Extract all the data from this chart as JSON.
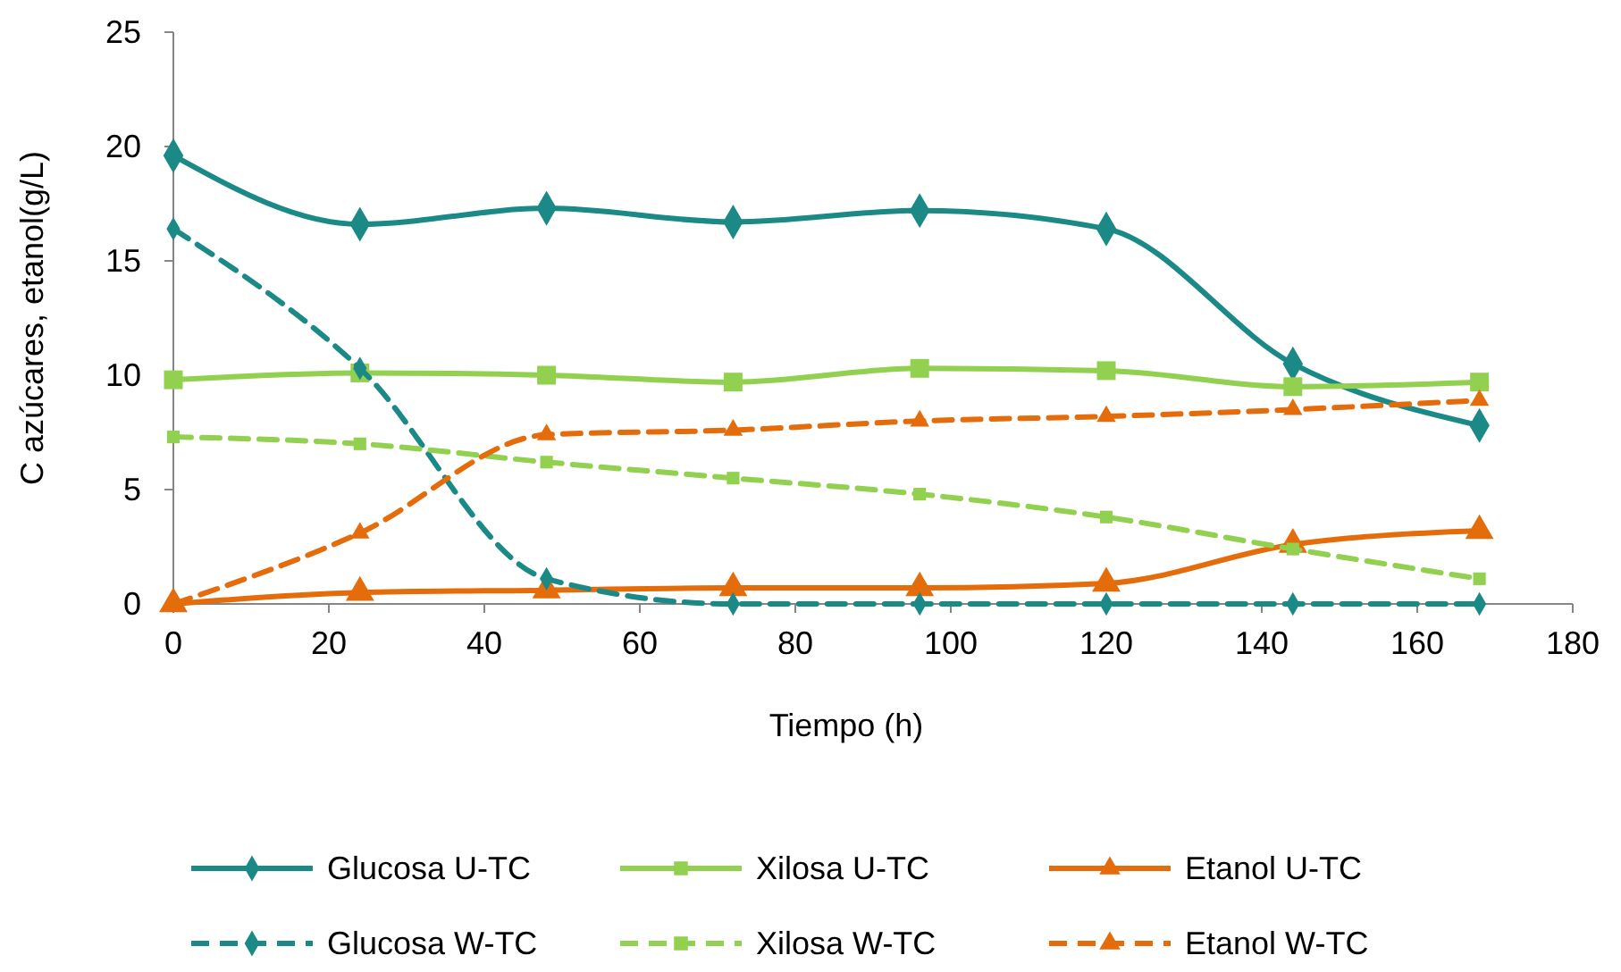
{
  "chart_data": {
    "type": "line",
    "xlabel": "Tiempo (h)",
    "ylabel": "C azúcares, etanol(g/L)",
    "x": [
      0,
      24,
      48,
      72,
      96,
      120,
      144,
      168
    ],
    "xlim": [
      0,
      180
    ],
    "xticks": [
      0,
      20,
      40,
      60,
      80,
      100,
      120,
      140,
      160,
      180
    ],
    "ylim": [
      0,
      25
    ],
    "yticks": [
      0,
      5,
      10,
      15,
      20,
      25
    ],
    "grid": false,
    "legend": "bottom",
    "series": [
      {
        "name": "Glucosa U-TC",
        "color": "#1b8a86",
        "marker": "diamond",
        "line_style": "solid",
        "values": [
          19.6,
          16.6,
          17.3,
          16.7,
          17.2,
          16.4,
          10.5,
          7.8
        ]
      },
      {
        "name": "Xilosa U-TC",
        "color": "#92d050",
        "marker": "square",
        "line_style": "solid",
        "values": [
          9.8,
          10.1,
          10.0,
          9.7,
          10.3,
          10.2,
          9.5,
          9.7
        ]
      },
      {
        "name": "Etanol U-TC",
        "color": "#e46c0a",
        "marker": "triangle",
        "line_style": "solid",
        "values": [
          0,
          0.5,
          0.6,
          0.7,
          0.7,
          0.9,
          2.6,
          3.2
        ]
      },
      {
        "name": "Glucosa W-TC",
        "color": "#1b8a86",
        "marker": "diamond",
        "line_style": "dashed",
        "values": [
          16.4,
          10.3,
          1.1,
          0,
          0,
          0,
          0,
          0
        ]
      },
      {
        "name": "Xilosa W-TC",
        "color": "#92d050",
        "marker": "square",
        "line_style": "dashed",
        "values": [
          7.3,
          7.0,
          6.2,
          5.5,
          4.8,
          3.8,
          2.4,
          1.1
        ]
      },
      {
        "name": "Etanol W-TC",
        "color": "#e46c0a",
        "marker": "triangle",
        "line_style": "dashed",
        "values": [
          0,
          3.1,
          7.4,
          7.6,
          8.0,
          8.2,
          8.5,
          8.9
        ]
      }
    ]
  }
}
